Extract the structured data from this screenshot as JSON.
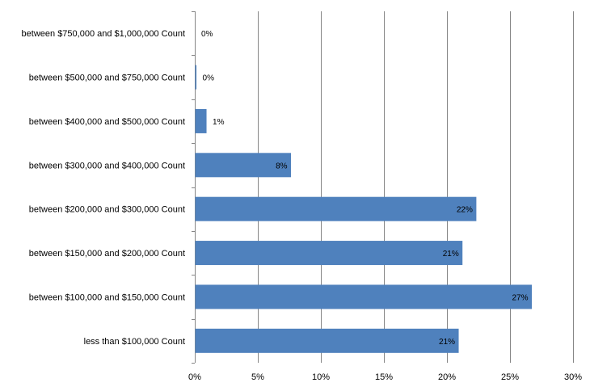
{
  "chart_data": {
    "type": "bar",
    "orientation": "horizontal",
    "categories": [
      "between $750,000 and $1,000,000 Count",
      "between $500,000 and $750,000 Count",
      "between $400,000 and $500,000 Count",
      "between $300,000 and $400,000 Count",
      "between $200,000 and $300,000 Count",
      "between $150,000 and $200,000 Count",
      "between $100,000 and $150,000 Count",
      "less than $100,000 Count"
    ],
    "values": [
      0.0,
      0.1,
      0.9,
      7.6,
      22.3,
      21.2,
      26.7,
      20.9
    ],
    "data_labels": [
      "0%",
      "0%",
      "1%",
      "8%",
      "22%",
      "21%",
      "27%",
      "21%"
    ],
    "xlim": [
      0,
      30
    ],
    "xticks": [
      0,
      5,
      10,
      15,
      20,
      25,
      30
    ],
    "xtick_labels": [
      "0%",
      "5%",
      "10%",
      "15%",
      "20%",
      "25%",
      "30%"
    ],
    "title": "",
    "xlabel": "",
    "ylabel": "",
    "grid": "vertical",
    "legend": "none",
    "bar_color": "#4f81bd",
    "grid_color": "#868686"
  }
}
